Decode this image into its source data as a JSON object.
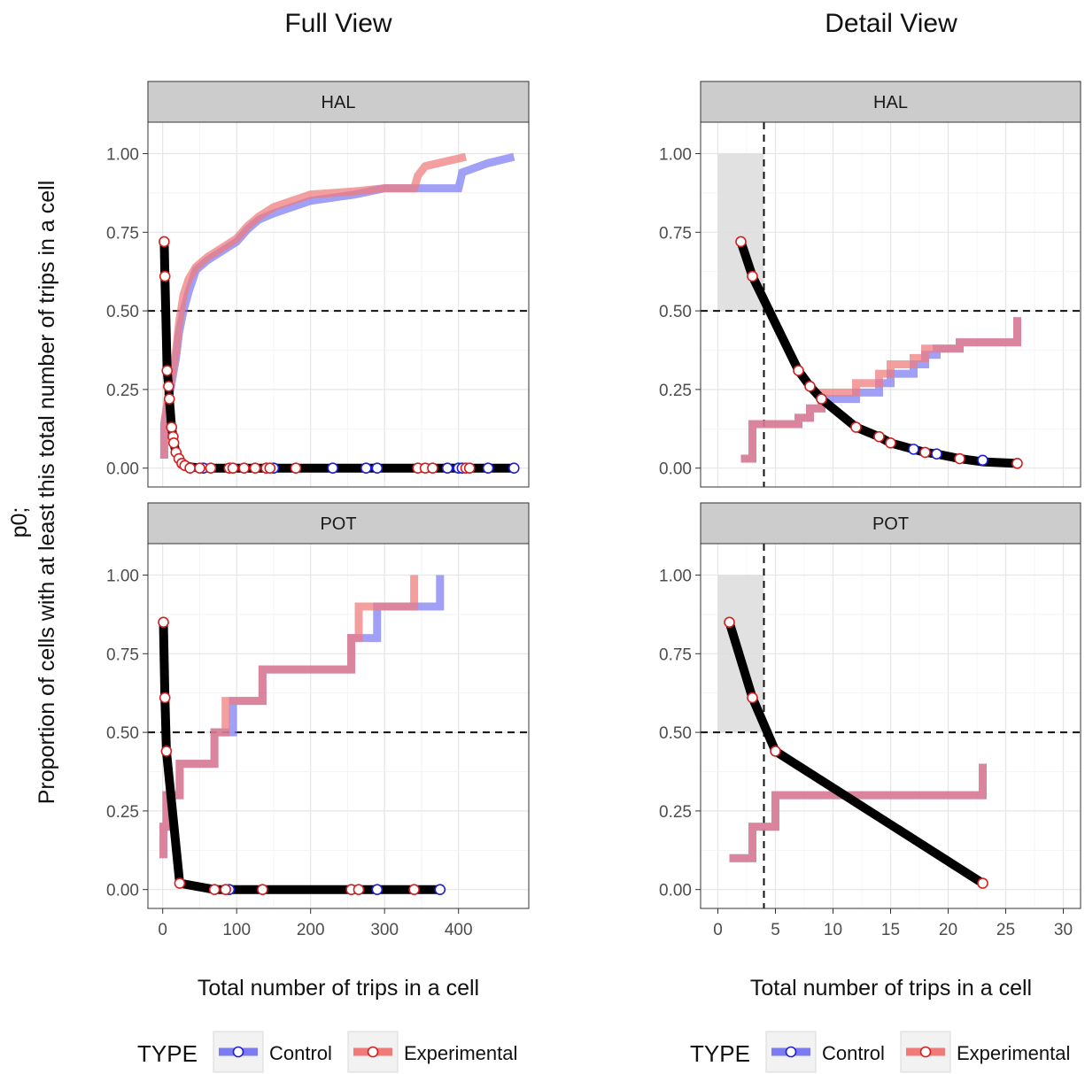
{
  "figure": {
    "ylabel_line1": "p0;",
    "ylabel_line2": "Proportion of cells with at least this total number of trips in a cell",
    "legend": {
      "title": "TYPE",
      "entries": [
        {
          "label": "Control",
          "line_color": "#7b7bf2",
          "point_stroke": "#1f1fd6"
        },
        {
          "label": "Experimental",
          "line_color": "#f07a7a",
          "point_stroke": "#d42020"
        }
      ]
    },
    "colors": {
      "control_step": "#7b7bf2",
      "experimental_step": "#f07a7a",
      "overlap_step": "#b3407a",
      "p0_curve": "#000000",
      "strip_bg": "#cccccc",
      "threshold_shade": "#dcdcdc"
    }
  },
  "chart_data": [
    {
      "type": "line",
      "view": "full",
      "title": "Full View",
      "panel": "HAL",
      "xlabel": "Total number of trips in a cell",
      "ylabel": "p0",
      "xlim": [
        -20,
        495
      ],
      "ylim": [
        -0.06,
        1.1
      ],
      "xticks": [
        0,
        100,
        200,
        300,
        400
      ],
      "yticks": [
        0,
        0.25,
        0.5,
        0.75,
        1
      ],
      "ytick_labels": [
        "0.00",
        "0.25",
        "0.50",
        "0.75",
        "1.00"
      ],
      "hline": 0.5,
      "p0_curve": [
        [
          2,
          0.72
        ],
        [
          3,
          0.61
        ],
        [
          6,
          0.31
        ],
        [
          8,
          0.26
        ],
        [
          9,
          0.22
        ],
        [
          12,
          0.13
        ],
        [
          14,
          0.1
        ],
        [
          15,
          0.08
        ],
        [
          18,
          0.05
        ],
        [
          22,
          0.03
        ],
        [
          26,
          0.015
        ],
        [
          30,
          0.008
        ],
        [
          40,
          0.003
        ],
        [
          50,
          0.001
        ],
        [
          60,
          0
        ],
        [
          475,
          0
        ]
      ],
      "control_points": [
        [
          55,
          0
        ],
        [
          150,
          0
        ],
        [
          230,
          0
        ],
        [
          275,
          0
        ],
        [
          290,
          0
        ],
        [
          385,
          0
        ],
        [
          400,
          0
        ],
        [
          405,
          0
        ],
        [
          440,
          0
        ],
        [
          475,
          0
        ]
      ],
      "experimental_points": [
        [
          2,
          0.72
        ],
        [
          3,
          0.61
        ],
        [
          6,
          0.31
        ],
        [
          8,
          0.26
        ],
        [
          9,
          0.22
        ],
        [
          12,
          0.13
        ],
        [
          14,
          0.1
        ],
        [
          15,
          0.08
        ],
        [
          18,
          0.05
        ],
        [
          22,
          0.03
        ],
        [
          26,
          0.015
        ],
        [
          30,
          0.008
        ],
        [
          37,
          0
        ],
        [
          50,
          0
        ],
        [
          65,
          0
        ],
        [
          90,
          0
        ],
        [
          95,
          0
        ],
        [
          110,
          0
        ],
        [
          125,
          0
        ],
        [
          140,
          0
        ],
        [
          145,
          0
        ],
        [
          180,
          0
        ],
        [
          345,
          0
        ],
        [
          355,
          0
        ],
        [
          365,
          0
        ],
        [
          410,
          0
        ],
        [
          415,
          0
        ]
      ],
      "series": [
        {
          "name": "Control",
          "points": [
            [
              2,
              0.03
            ],
            [
              2,
              0.14
            ],
            [
              8,
              0.22
            ],
            [
              12,
              0.27
            ],
            [
              18,
              0.35
            ],
            [
              22,
              0.43
            ],
            [
              28,
              0.5
            ],
            [
              35,
              0.56
            ],
            [
              45,
              0.63
            ],
            [
              60,
              0.66
            ],
            [
              80,
              0.69
            ],
            [
              100,
              0.72
            ],
            [
              115,
              0.76
            ],
            [
              130,
              0.79
            ],
            [
              150,
              0.81
            ],
            [
              175,
              0.83
            ],
            [
              200,
              0.85
            ],
            [
              260,
              0.87
            ],
            [
              300,
              0.89
            ],
            [
              340,
              0.89
            ],
            [
              400,
              0.89
            ],
            [
              405,
              0.94
            ],
            [
              440,
              0.97
            ],
            [
              475,
              0.99
            ]
          ]
        },
        {
          "name": "Experimental",
          "points": [
            [
              2,
              0.03
            ],
            [
              2,
              0.14
            ],
            [
              8,
              0.24
            ],
            [
              12,
              0.29
            ],
            [
              18,
              0.37
            ],
            [
              22,
              0.46
            ],
            [
              28,
              0.55
            ],
            [
              35,
              0.6
            ],
            [
              45,
              0.64
            ],
            [
              60,
              0.67
            ],
            [
              80,
              0.7
            ],
            [
              100,
              0.73
            ],
            [
              115,
              0.77
            ],
            [
              130,
              0.8
            ],
            [
              150,
              0.83
            ],
            [
              175,
              0.85
            ],
            [
              200,
              0.87
            ],
            [
              260,
              0.88
            ],
            [
              300,
              0.89
            ],
            [
              340,
              0.89
            ],
            [
              345,
              0.93
            ],
            [
              355,
              0.96
            ],
            [
              410,
              0.99
            ]
          ]
        }
      ]
    },
    {
      "type": "line",
      "view": "full",
      "panel": "POT",
      "xlabel": "Total number of trips in a cell",
      "ylabel": "p0",
      "xlim": [
        -20,
        495
      ],
      "ylim": [
        -0.06,
        1.1
      ],
      "xticks": [
        0,
        100,
        200,
        300,
        400
      ],
      "yticks": [
        0,
        0.25,
        0.5,
        0.75,
        1
      ],
      "ytick_labels": [
        "0.00",
        "0.25",
        "0.50",
        "0.75",
        "1.00"
      ],
      "hline": 0.5,
      "p0_curve": [
        [
          1,
          0.85
        ],
        [
          3,
          0.61
        ],
        [
          5,
          0.44
        ],
        [
          23,
          0.02
        ],
        [
          70,
          0
        ],
        [
          375,
          0
        ]
      ],
      "control_points": [
        [
          90,
          0
        ],
        [
          290,
          0
        ],
        [
          375,
          0
        ]
      ],
      "experimental_points": [
        [
          1,
          0.85
        ],
        [
          3,
          0.61
        ],
        [
          5,
          0.44
        ],
        [
          23,
          0.02
        ],
        [
          70,
          0
        ],
        [
          85,
          0
        ],
        [
          135,
          0
        ],
        [
          255,
          0
        ],
        [
          265,
          0
        ],
        [
          340,
          0
        ]
      ],
      "series": [
        {
          "name": "Control",
          "points": [
            [
              1,
              0.1
            ],
            [
              1,
              0.2
            ],
            [
              5,
              0.2
            ],
            [
              5,
              0.3
            ],
            [
              23,
              0.3
            ],
            [
              23,
              0.4
            ],
            [
              70,
              0.4
            ],
            [
              70,
              0.5
            ],
            [
              95,
              0.5
            ],
            [
              95,
              0.6
            ],
            [
              135,
              0.6
            ],
            [
              135,
              0.7
            ],
            [
              255,
              0.7
            ],
            [
              255,
              0.8
            ],
            [
              290,
              0.8
            ],
            [
              290,
              0.9
            ],
            [
              375,
              0.9
            ],
            [
              375,
              1.0
            ]
          ]
        },
        {
          "name": "Experimental",
          "points": [
            [
              1,
              0.1
            ],
            [
              1,
              0.2
            ],
            [
              5,
              0.2
            ],
            [
              5,
              0.3
            ],
            [
              23,
              0.3
            ],
            [
              23,
              0.4
            ],
            [
              70,
              0.4
            ],
            [
              70,
              0.5
            ],
            [
              85,
              0.5
            ],
            [
              85,
              0.6
            ],
            [
              135,
              0.6
            ],
            [
              135,
              0.7
            ],
            [
              255,
              0.7
            ],
            [
              255,
              0.8
            ],
            [
              265,
              0.8
            ],
            [
              265,
              0.9
            ],
            [
              340,
              0.9
            ],
            [
              340,
              1.0
            ]
          ]
        }
      ]
    },
    {
      "type": "line",
      "view": "detail",
      "title": "Detail View",
      "panel": "HAL",
      "xlabel": "Total number of trips in a cell",
      "ylabel": "p0",
      "xlim": [
        -1.5,
        31.5
      ],
      "ylim": [
        -0.06,
        1.1
      ],
      "xticks": [
        0,
        5,
        10,
        15,
        20,
        25,
        30
      ],
      "yticks": [
        0,
        0.25,
        0.5,
        0.75,
        1
      ],
      "ytick_labels": [
        "0.00",
        "0.25",
        "0.50",
        "0.75",
        "1.00"
      ],
      "hline": 0.5,
      "vline": 4,
      "shade": {
        "x": [
          0,
          4
        ],
        "y": [
          0.5,
          1
        ]
      },
      "p0_curve": [
        [
          2,
          0.72
        ],
        [
          3,
          0.61
        ],
        [
          7,
          0.31
        ],
        [
          8,
          0.26
        ],
        [
          9,
          0.22
        ],
        [
          12,
          0.13
        ],
        [
          14,
          0.1
        ],
        [
          15,
          0.08
        ],
        [
          17,
          0.06
        ],
        [
          18,
          0.05
        ],
        [
          19,
          0.045
        ],
        [
          21,
          0.03
        ],
        [
          23,
          0.02
        ],
        [
          26,
          0.015
        ]
      ],
      "control_points": [
        [
          17,
          0.06
        ],
        [
          19,
          0.045
        ],
        [
          23,
          0.025
        ]
      ],
      "experimental_points": [
        [
          2,
          0.72
        ],
        [
          3,
          0.61
        ],
        [
          7,
          0.31
        ],
        [
          8,
          0.26
        ],
        [
          9,
          0.22
        ],
        [
          12,
          0.13
        ],
        [
          14,
          0.1
        ],
        [
          15,
          0.08
        ],
        [
          18,
          0.05
        ],
        [
          21,
          0.03
        ],
        [
          26,
          0.015
        ]
      ],
      "series": [
        {
          "name": "Control",
          "points": [
            [
              2,
              0.03
            ],
            [
              3,
              0.03
            ],
            [
              3,
              0.14
            ],
            [
              7,
              0.14
            ],
            [
              7,
              0.16
            ],
            [
              8,
              0.16
            ],
            [
              8,
              0.19
            ],
            [
              9,
              0.19
            ],
            [
              9,
              0.22
            ],
            [
              12,
              0.22
            ],
            [
              12,
              0.24
            ],
            [
              14,
              0.24
            ],
            [
              14,
              0.27
            ],
            [
              15,
              0.27
            ],
            [
              15,
              0.3
            ],
            [
              17,
              0.3
            ],
            [
              17,
              0.33
            ],
            [
              18,
              0.33
            ],
            [
              18,
              0.36
            ],
            [
              19,
              0.36
            ],
            [
              19,
              0.38
            ],
            [
              21,
              0.38
            ],
            [
              21,
              0.4
            ],
            [
              26,
              0.4
            ],
            [
              26,
              0.48
            ]
          ]
        },
        {
          "name": "Experimental",
          "points": [
            [
              2,
              0.03
            ],
            [
              3,
              0.03
            ],
            [
              3,
              0.14
            ],
            [
              7,
              0.14
            ],
            [
              7,
              0.16
            ],
            [
              8,
              0.16
            ],
            [
              8,
              0.19
            ],
            [
              9,
              0.19
            ],
            [
              9,
              0.24
            ],
            [
              12,
              0.24
            ],
            [
              12,
              0.27
            ],
            [
              14,
              0.27
            ],
            [
              14,
              0.3
            ],
            [
              15,
              0.3
            ],
            [
              15,
              0.33
            ],
            [
              17,
              0.33
            ],
            [
              17,
              0.35
            ],
            [
              18,
              0.35
            ],
            [
              18,
              0.38
            ],
            [
              21,
              0.38
            ],
            [
              21,
              0.4
            ],
            [
              26,
              0.4
            ],
            [
              26,
              0.48
            ]
          ]
        }
      ]
    },
    {
      "type": "line",
      "view": "detail",
      "panel": "POT",
      "xlabel": "Total number of trips in a cell",
      "ylabel": "p0",
      "xlim": [
        -1.5,
        31.5
      ],
      "ylim": [
        -0.06,
        1.1
      ],
      "xticks": [
        0,
        5,
        10,
        15,
        20,
        25,
        30
      ],
      "yticks": [
        0,
        0.25,
        0.5,
        0.75,
        1
      ],
      "ytick_labels": [
        "0.00",
        "0.25",
        "0.50",
        "0.75",
        "1.00"
      ],
      "hline": 0.5,
      "vline": 4,
      "shade": {
        "x": [
          0,
          4
        ],
        "y": [
          0.5,
          1
        ]
      },
      "p0_curve": [
        [
          1,
          0.85
        ],
        [
          3,
          0.61
        ],
        [
          5,
          0.44
        ],
        [
          23,
          0.02
        ]
      ],
      "control_points": [],
      "experimental_points": [
        [
          1,
          0.85
        ],
        [
          3,
          0.61
        ],
        [
          5,
          0.44
        ],
        [
          23,
          0.02
        ]
      ],
      "series": [
        {
          "name": "Control",
          "points": [
            [
              1,
              0.1
            ],
            [
              3,
              0.1
            ],
            [
              3,
              0.2
            ],
            [
              5,
              0.2
            ],
            [
              5,
              0.3
            ],
            [
              23,
              0.3
            ],
            [
              23,
              0.4
            ]
          ]
        },
        {
          "name": "Experimental",
          "points": [
            [
              1,
              0.1
            ],
            [
              3,
              0.1
            ],
            [
              3,
              0.2
            ],
            [
              5,
              0.2
            ],
            [
              5,
              0.3
            ],
            [
              23,
              0.3
            ],
            [
              23,
              0.4
            ]
          ]
        }
      ]
    }
  ]
}
